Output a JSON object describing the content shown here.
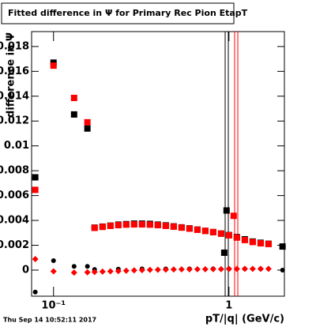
{
  "chart_data": {
    "type": "scatter",
    "title": "Fitted difference in  Ψ  for Primary Rec Pion EtapT",
    "x_label": "pT/|q| (GeV/c)",
    "y_label": "difference in Ψ",
    "footer": "Thu Sep 14 10:52:11 2017",
    "log_x": true,
    "xlim": [
      0.075,
      2.07
    ],
    "ylim": [
      -0.0021,
      0.0192
    ],
    "xticks": [
      {
        "value": 0.1,
        "label": "10⁻¹"
      },
      1
    ],
    "yticks": [
      0,
      0.002,
      0.004,
      0.006,
      0.008,
      0.01,
      0.012,
      0.014,
      0.016,
      0.018
    ],
    "series": [
      {
        "color": "#000000",
        "marker": "square",
        "x": [
          0.0787,
          0.1,
          0.131,
          0.156,
          0.1714,
          0.1903,
          0.211,
          0.2341,
          0.2597,
          0.2881,
          0.3196,
          0.3545,
          0.3933,
          0.4363,
          0.484,
          0.5369,
          0.5956,
          0.6607,
          0.7329,
          0.8131,
          0.902,
          0.94,
          0.969,
          1.0,
          1.109,
          1.231,
          1.365,
          1.515,
          1.68,
          2.02
        ],
        "values": [
          0.00747,
          0.0167,
          0.01253,
          0.0114,
          0.00342,
          0.0035,
          0.00358,
          0.00366,
          0.0037,
          0.00374,
          0.00374,
          0.00372,
          0.00366,
          0.0036,
          0.00352,
          0.00344,
          0.00336,
          0.00326,
          0.00316,
          0.00306,
          0.00294,
          0.0014,
          0.0048,
          0.00282,
          0.00266,
          0.00248,
          0.0023,
          0.0022,
          0.00212,
          0.0019
        ]
      },
      {
        "color": "#ff0000",
        "marker": "square",
        "x": [
          0.0787,
          0.1,
          0.131,
          0.156,
          0.1714,
          0.1903,
          0.211,
          0.2341,
          0.2597,
          0.2881,
          0.3196,
          0.3545,
          0.3933,
          0.4363,
          0.484,
          0.5369,
          0.5956,
          0.6607,
          0.7329,
          0.8131,
          0.902,
          1.0,
          1.064,
          1.109,
          1.231,
          1.365,
          1.515,
          1.68
        ],
        "values": [
          0.00646,
          0.01646,
          0.01386,
          0.0119,
          0.0034,
          0.00348,
          0.00356,
          0.00362,
          0.00366,
          0.00368,
          0.00368,
          0.00366,
          0.00362,
          0.00356,
          0.0035,
          0.00342,
          0.00334,
          0.00325,
          0.00316,
          0.00306,
          0.00294,
          0.0028,
          0.00437,
          0.00262,
          0.00242,
          0.00226,
          0.00216,
          0.0021
        ]
      },
      {
        "color": "#000000",
        "marker": "circle",
        "x": [
          0.0787,
          0.1,
          0.131,
          0.156,
          0.1714,
          0.2341,
          0.3196,
          0.4363,
          0.5956,
          0.8131,
          1.0,
          1.231,
          1.515,
          2.02
        ],
        "values": [
          -0.00177,
          0.00076,
          0.0003,
          0.0003,
          5e-05,
          8e-05,
          0.0001,
          0.0001,
          0.0001,
          0.0001,
          0.0001,
          0.0001,
          0.0001,
          0
        ]
      },
      {
        "color": "#ff0000",
        "marker": "diamond",
        "x": [
          0.0787,
          0.1,
          0.131,
          0.156,
          0.1714,
          0.1903,
          0.211,
          0.2341,
          0.2597,
          0.2881,
          0.3196,
          0.3545,
          0.3933,
          0.4363,
          0.484,
          0.5369,
          0.5956,
          0.6607,
          0.7329,
          0.8131,
          0.902,
          1.0,
          1.109,
          1.231,
          1.365,
          1.515,
          1.68
        ],
        "values": [
          0.00089,
          -0.0001,
          -0.0002,
          -0.00018,
          -0.00015,
          -0.00012,
          -0.0001,
          -8e-05,
          -5e-05,
          -2e-05,
          0,
          2e-05,
          3e-05,
          4e-05,
          5e-05,
          6e-05,
          6e-05,
          7e-05,
          7e-05,
          8e-05,
          8e-05,
          9e-05,
          9e-05,
          0.0001,
          0.0001,
          0.0001,
          0.0001
        ]
      }
    ]
  }
}
